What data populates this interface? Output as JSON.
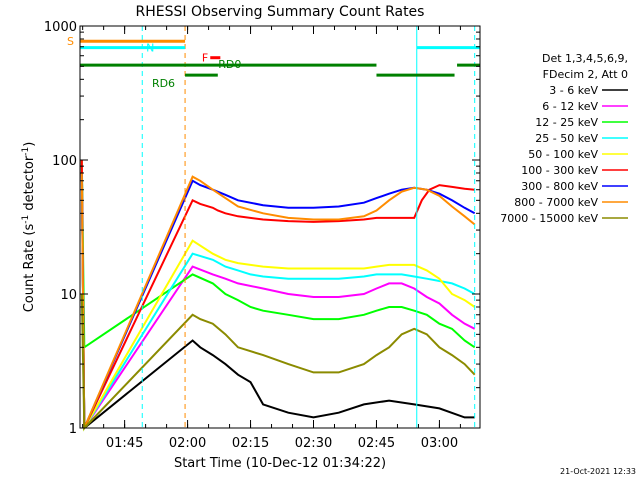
{
  "chart_data": {
    "type": "line",
    "title": "RHESSI Observing Summary Count Rates",
    "xlabel": "Start Time (10-Dec-12 01:34:22)",
    "ylabel_main": "Count Rate (s",
    "ylabel_sup1": "-1",
    "ylabel_mid": " detector",
    "ylabel_sup2": "-1",
    "ylabel_end": ")",
    "y_scale": "log",
    "ylim": [
      1,
      1000
    ],
    "xlim": [
      1.5728,
      3.1611
    ],
    "x_units": "hours UT",
    "x_ticks": [
      {
        "v": 1.75,
        "label": "01:45"
      },
      {
        "v": 2.0,
        "label": "02:00"
      },
      {
        "v": 2.25,
        "label": "02:15"
      },
      {
        "v": 2.5,
        "label": "02:30"
      },
      {
        "v": 2.75,
        "label": "02:45"
      },
      {
        "v": 3.0,
        "label": "03:00"
      }
    ],
    "y_ticks": [
      {
        "v": 1,
        "label": "1"
      },
      {
        "v": 10,
        "label": "10"
      },
      {
        "v": 100,
        "label": "100"
      },
      {
        "v": 1000,
        "label": "1000"
      }
    ],
    "legend_position": "right",
    "legend_header": [
      "Det 1,3,4,5,6,9,",
      "FDecim 2, Att 0"
    ],
    "series": [
      {
        "name": "3 - 6 keV",
        "color": "#000000",
        "x": [
          1.58,
          1.59,
          2.02,
          2.05,
          2.1,
          2.15,
          2.2,
          2.25,
          2.3,
          2.4,
          2.5,
          2.6,
          2.7,
          2.8,
          2.9,
          3.0,
          3.1,
          3.14
        ],
        "y": [
          100,
          1,
          4.5,
          4,
          3.5,
          3,
          2.5,
          2.2,
          1.5,
          1.3,
          1.2,
          1.3,
          1.5,
          1.6,
          1.5,
          1.4,
          1.2,
          1.2
        ]
      },
      {
        "name": "6 - 12 keV",
        "color": "#ff00ff",
        "x": [
          1.58,
          1.59,
          2.02,
          2.1,
          2.15,
          2.2,
          2.3,
          2.4,
          2.5,
          2.6,
          2.7,
          2.75,
          2.8,
          2.85,
          2.9,
          2.95,
          3.0,
          3.05,
          3.1,
          3.14
        ],
        "y": [
          100,
          1,
          16,
          14,
          13,
          12,
          11,
          10,
          9.5,
          9.5,
          10,
          11,
          12,
          12,
          11,
          9.5,
          8.5,
          7,
          6,
          5.5
        ]
      },
      {
        "name": "12 - 25 keV",
        "color": "#00ff00",
        "x": [
          1.58,
          1.59,
          2.02,
          2.1,
          2.15,
          2.2,
          2.25,
          2.3,
          2.4,
          2.5,
          2.6,
          2.7,
          2.75,
          2.8,
          2.85,
          2.9,
          2.95,
          3.0,
          3.05,
          3.1,
          3.14
        ],
        "y": [
          100,
          4,
          14,
          12,
          10,
          9,
          8,
          7.5,
          7,
          6.5,
          6.5,
          7,
          7.5,
          8,
          8,
          7.5,
          7,
          6,
          5.5,
          4.5,
          4
        ]
      },
      {
        "name": "25 - 50 keV",
        "color": "#00ffff",
        "x": [
          1.58,
          1.59,
          2.02,
          2.1,
          2.15,
          2.2,
          2.25,
          2.3,
          2.4,
          2.5,
          2.6,
          2.7,
          2.75,
          2.8,
          2.85,
          2.9,
          2.95,
          3.0,
          3.05,
          3.1,
          3.14
        ],
        "y": [
          100,
          1,
          20,
          18,
          16,
          15,
          14,
          13.5,
          13,
          13,
          13,
          13.5,
          14,
          14,
          14,
          13.5,
          13,
          12.5,
          12,
          11,
          10
        ]
      },
      {
        "name": "50 - 100 keV",
        "color": "#ffff00",
        "x": [
          1.58,
          1.59,
          2.02,
          2.1,
          2.15,
          2.2,
          2.3,
          2.4,
          2.5,
          2.6,
          2.7,
          2.75,
          2.8,
          2.85,
          2.9,
          2.95,
          3.0,
          3.05,
          3.1,
          3.14
        ],
        "y": [
          100,
          1,
          25,
          20,
          18,
          17,
          16,
          15.5,
          15.5,
          15.5,
          15.5,
          16,
          16.5,
          16.5,
          16.5,
          15,
          13,
          10,
          9,
          8
        ]
      },
      {
        "name": "100 - 300 keV",
        "color": "#ff0000",
        "x": [
          1.58,
          1.59,
          2.02,
          2.05,
          2.1,
          2.12,
          2.15,
          2.2,
          2.3,
          2.4,
          2.5,
          2.6,
          2.7,
          2.75,
          2.78,
          2.82,
          2.86,
          2.9,
          2.93,
          2.96,
          3.0,
          3.05,
          3.1,
          3.14
        ],
        "y": [
          100,
          1,
          50,
          47,
          44,
          42,
          40,
          38,
          36,
          35,
          34.5,
          35,
          36,
          37,
          37,
          37,
          37,
          37,
          50,
          60,
          65,
          63,
          61,
          60
        ]
      },
      {
        "name": "300 - 800 keV",
        "color": "#0000ff",
        "x": [
          1.58,
          1.59,
          2.02,
          2.05,
          2.1,
          2.15,
          2.2,
          2.3,
          2.4,
          2.5,
          2.6,
          2.7,
          2.75,
          2.8,
          2.85,
          2.9,
          2.95,
          3.0,
          3.05,
          3.1,
          3.14
        ],
        "y": [
          80,
          1,
          70,
          65,
          60,
          55,
          50,
          46,
          44,
          44,
          45,
          48,
          52,
          56,
          60,
          62,
          60,
          56,
          50,
          44,
          40
        ]
      },
      {
        "name": "800 - 7000 keV",
        "color": "#ff8c00",
        "x": [
          1.58,
          1.59,
          2.02,
          2.05,
          2.1,
          2.15,
          2.2,
          2.3,
          2.4,
          2.5,
          2.6,
          2.7,
          2.75,
          2.8,
          2.85,
          2.9,
          2.95,
          3.0,
          3.05,
          3.1,
          3.14
        ],
        "y": [
          80,
          1,
          75,
          70,
          60,
          52,
          45,
          40,
          37,
          36,
          36,
          38,
          42,
          50,
          58,
          62,
          60,
          54,
          45,
          38,
          33
        ]
      },
      {
        "name": "7000 - 15000 keV",
        "color": "#8b8b00",
        "x": [
          1.58,
          1.59,
          2.02,
          2.05,
          2.1,
          2.15,
          2.2,
          2.3,
          2.4,
          2.5,
          2.6,
          2.7,
          2.75,
          2.8,
          2.85,
          2.9,
          2.95,
          3.0,
          3.05,
          3.1,
          3.14
        ],
        "y": [
          10,
          1,
          7,
          6.5,
          6,
          5,
          4,
          3.5,
          3,
          2.6,
          2.6,
          3,
          3.5,
          4,
          5,
          5.5,
          5,
          4,
          3.5,
          3,
          2.5
        ]
      }
    ],
    "flags": [
      {
        "label": "S",
        "color": "#ff8c00",
        "y": 770,
        "x_start": 1.5728,
        "x_end": 1.99,
        "segments": [
          [
            1.5728,
            1.99
          ]
        ]
      },
      {
        "label": "N",
        "color": "#00ffff",
        "y": 690,
        "x_start": 1.5728,
        "x_end": 3.1611,
        "segments": [
          [
            1.5728,
            1.99
          ],
          [
            2.91,
            3.16
          ]
        ]
      },
      {
        "label": "F",
        "color": "#ff0000",
        "y": 580,
        "x_start": 2.09,
        "x_end": 2.13,
        "segments": [
          [
            2.09,
            2.13
          ]
        ]
      },
      {
        "label": "RD0",
        "color": "#008000",
        "y": 510,
        "x_start": 1.5728,
        "x_end": 3.1611,
        "segments": [
          [
            1.5728,
            2.75
          ],
          [
            3.07,
            3.16
          ]
        ]
      },
      {
        "label": "RD6",
        "color": "#008000",
        "y": 430,
        "x_start": 1.99,
        "x_end": 3.06,
        "segments": [
          [
            1.99,
            2.12
          ],
          [
            2.75,
            3.06
          ]
        ]
      }
    ],
    "vlines": [
      {
        "x": 1.82,
        "color": "#00ffff",
        "dash": true
      },
      {
        "x": 1.99,
        "color": "#ff8c00",
        "dash": true
      },
      {
        "x": 2.91,
        "color": "#00ffff",
        "dash": false
      },
      {
        "x": 3.14,
        "color": "#00ffff",
        "dash": true
      }
    ],
    "grid": false
  },
  "footer": {
    "date_stamp": "21-Oct-2021 12:33"
  }
}
